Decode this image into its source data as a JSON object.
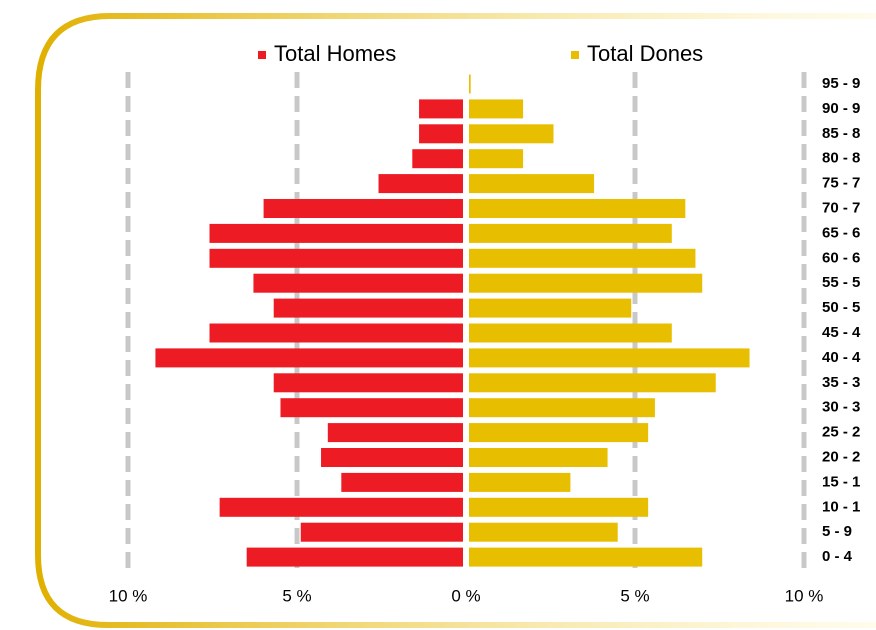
{
  "chart_data": {
    "type": "pyramid",
    "categories": [
      "95 - 9",
      "90 - 9",
      "85 - 8",
      "80 - 8",
      "75 - 7",
      "70 - 7",
      "65 - 6",
      "60 - 6",
      "55 - 5",
      "50 - 5",
      "45 - 4",
      "40 - 4",
      "35 - 3",
      "30 - 3",
      "25 - 2",
      "20 - 2",
      "15 - 1",
      "10 - 1",
      "5 - 9",
      "0 - 4"
    ],
    "series": [
      {
        "name": "Total Homes",
        "color": "#ed1c24",
        "side": "left",
        "values": [
          0,
          1.3,
          1.3,
          1.5,
          2.5,
          5.9,
          7.5,
          7.5,
          6.2,
          5.6,
          7.5,
          9.1,
          5.6,
          5.4,
          4.0,
          4.2,
          3.6,
          7.2,
          4.8,
          6.4
        ]
      },
      {
        "name": "Total Dones",
        "color": "#e8bf00",
        "side": "right",
        "values": [
          0.05,
          1.6,
          2.5,
          1.6,
          3.7,
          6.4,
          6.0,
          6.7,
          6.9,
          4.8,
          6.0,
          8.3,
          7.3,
          5.5,
          5.3,
          4.1,
          3.0,
          5.3,
          4.4,
          6.9
        ]
      }
    ],
    "xlim": [
      -10,
      10
    ],
    "xticks": [
      {
        "value": -10,
        "label": "10 %"
      },
      {
        "value": -5,
        "label": "5 %"
      },
      {
        "value": 0,
        "label": "0 %"
      },
      {
        "value": 5,
        "label": "5 %"
      },
      {
        "value": 10,
        "label": "10 %"
      }
    ],
    "grid": true
  }
}
